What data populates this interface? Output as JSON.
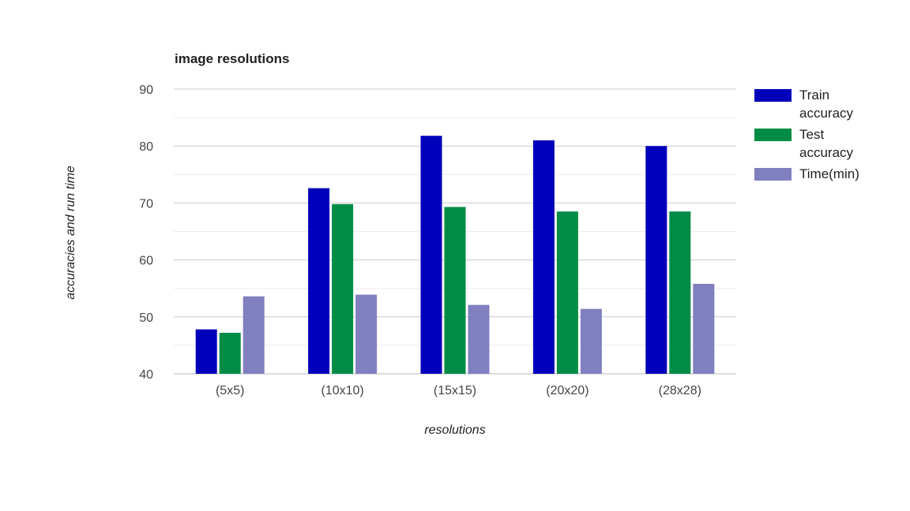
{
  "chart_data": {
    "type": "bar",
    "title": "image resolutions",
    "xlabel": "resolutions",
    "ylabel": "accuracies and run time",
    "ylim": [
      40,
      90
    ],
    "yticks": [
      "40",
      "50",
      "60",
      "70",
      "80",
      "90"
    ],
    "grid": true,
    "legend_position": "right",
    "categories": [
      "(5x5)",
      "(10x10)",
      "(15x15)",
      "(20x20)",
      "(28x28)"
    ],
    "series": [
      {
        "name": "Train accuracy",
        "legend_lines": [
          "Train",
          "accuracy"
        ],
        "color": "#0000bb",
        "values": [
          47.8,
          72.6,
          81.8,
          81.0,
          80.0
        ]
      },
      {
        "name": "Test accuracy",
        "legend_lines": [
          "Test",
          "accuracy"
        ],
        "color": "#008c45",
        "values": [
          47.2,
          69.8,
          69.3,
          68.5,
          68.5
        ]
      },
      {
        "name": "Time(min)",
        "legend_lines": [
          "Time(min)"
        ],
        "color": "#8080c0",
        "values": [
          53.6,
          53.9,
          52.1,
          51.4,
          55.8
        ]
      }
    ]
  }
}
